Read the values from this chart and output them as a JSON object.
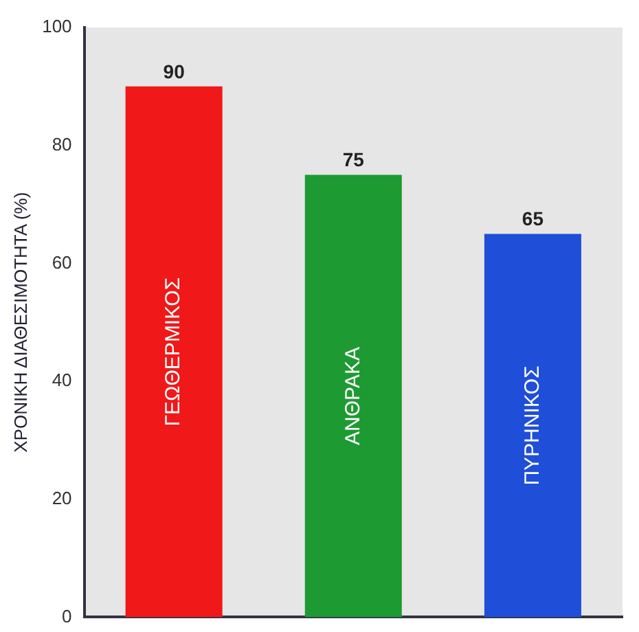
{
  "chart_data": {
    "type": "bar",
    "ylabel": "ΧΡΟΝΙΚΗ ΔΙΑΘΕΣΙΜΟΤΗΤΑ (%)",
    "categories": [
      "ΓΕΩΘΕΡΜΙΚΟΣ",
      "ΑΝΘΡΑΚΑ",
      "ΠΥΡΗΝΙΚΟΣ"
    ],
    "values": [
      90,
      75,
      65
    ],
    "colors": [
      "#f01818",
      "#1e9a32",
      "#1f4ed8"
    ],
    "ylim": [
      0,
      100
    ],
    "yticks": [
      0,
      20,
      40,
      60,
      80,
      100
    ],
    "data_labels": true,
    "grid": false,
    "legend": false
  }
}
